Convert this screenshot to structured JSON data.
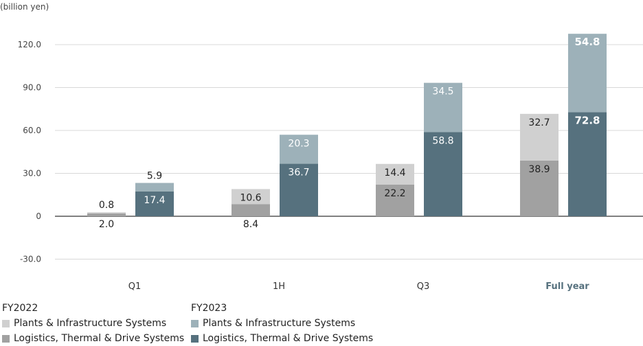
{
  "chart_data": {
    "type": "bar",
    "stacked": true,
    "unit_label": "(billion yen)",
    "categories": [
      "Q1",
      "1H",
      "Q3",
      "Full year"
    ],
    "highlight_category": "Full year",
    "y_ticks": [
      "120.0",
      "90.0",
      "60.0",
      "30.0",
      "0",
      "-30.0"
    ],
    "y_tick_values": [
      120,
      90,
      60,
      30,
      0,
      -30
    ],
    "ylim": [
      -30,
      120
    ],
    "groups": [
      {
        "name": "FY2022",
        "series": [
          {
            "name": "Logistics, Thermal & Drive Systems",
            "color": "#a1a1a1",
            "values": [
              2.0,
              8.4,
              22.2,
              38.9
            ],
            "labels": [
              "2.0",
              "8.4",
              "22.2",
              "38.9"
            ]
          },
          {
            "name": "Plants & Infrastructure Systems",
            "color": "#d0d0d0",
            "values": [
              0.8,
              10.6,
              14.4,
              32.7
            ],
            "labels": [
              "0.8",
              "10.6",
              "14.4",
              "32.7"
            ]
          }
        ]
      },
      {
        "name": "FY2023",
        "series": [
          {
            "name": "Logistics, Thermal & Drive Systems",
            "color": "#56717e",
            "values": [
              17.4,
              36.7,
              58.8,
              72.8
            ],
            "labels": [
              "17.4",
              "36.7",
              "58.8",
              "72.8"
            ]
          },
          {
            "name": "Plants & Infrastructure Systems",
            "color": "#9db1b9",
            "values": [
              5.9,
              20.3,
              34.5,
              54.8
            ],
            "labels": [
              "5.9",
              "20.3",
              "34.5",
              "54.8"
            ]
          }
        ]
      }
    ]
  },
  "legend": {
    "fy2022_title": "FY2022",
    "fy2023_title": "FY2023",
    "plants_label": "Plants & Infrastructure Systems",
    "logistics_label": "Logistics, Thermal & Drive Systems"
  }
}
